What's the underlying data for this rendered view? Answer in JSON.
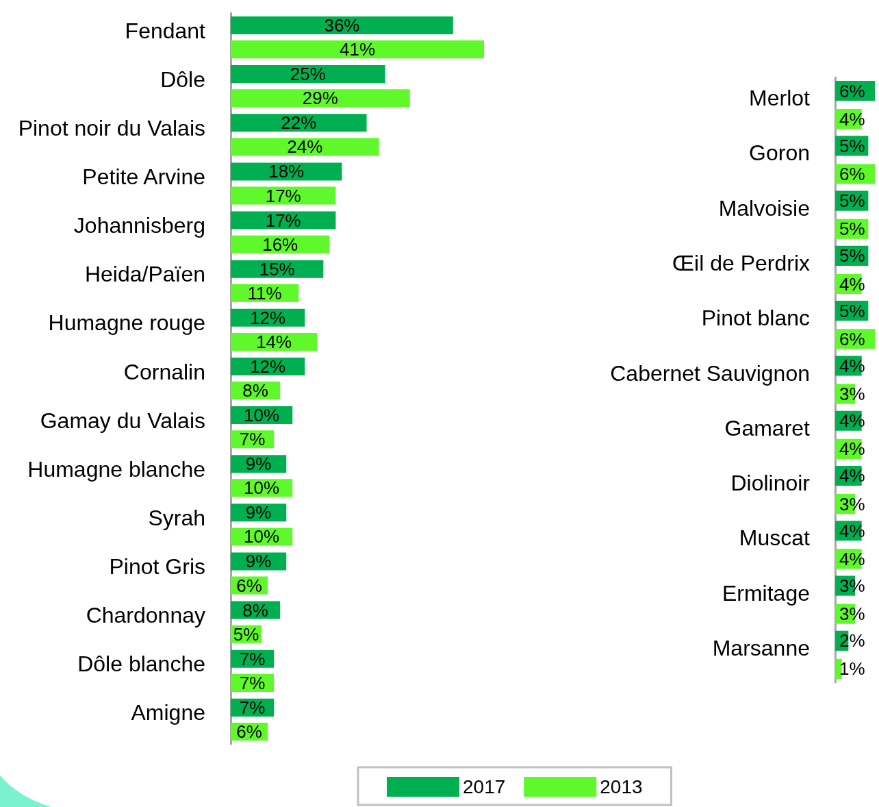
{
  "chart_data": [
    {
      "type": "bar",
      "orientation": "horizontal",
      "tick_labels": "y",
      "legend": "bottom",
      "categories": [
        "Fendant",
        "Dôle",
        "Pinot noir du Valais",
        "Petite Arvine",
        "Johannisberg",
        "Heida/Païen",
        "Humagne rouge",
        "Cornalin",
        "Gamay du Valais",
        "Humagne blanche",
        "Syrah",
        "Pinot Gris",
        "Chardonnay",
        "Dôle blanche",
        "Amigne"
      ],
      "series": [
        {
          "name": "2017",
          "color": "#00b050",
          "values": [
            36,
            25,
            22,
            18,
            17,
            15,
            12,
            12,
            10,
            9,
            9,
            9,
            8,
            7,
            7
          ],
          "value_labels": [
            "36%",
            "25%",
            "22%",
            "18%",
            "17%",
            "15%",
            "12%",
            "12%",
            "10%",
            "9%",
            "9%",
            "9%",
            "8%",
            "7%",
            "7%"
          ]
        },
        {
          "name": "2013",
          "color": "#5ff82a",
          "values": [
            41,
            29,
            24,
            17,
            16,
            11,
            14,
            8,
            7,
            10,
            10,
            6,
            5,
            7,
            6
          ],
          "value_labels": [
            "41%",
            "29%",
            "24%",
            "17%",
            "16%",
            "11%",
            "14%",
            "8%",
            "7%",
            "10%",
            "10%",
            "6%",
            "5%",
            "7%",
            "6%"
          ]
        }
      ]
    },
    {
      "type": "bar",
      "orientation": "horizontal",
      "tick_labels": "y",
      "categories": [
        "Merlot",
        "Goron",
        "Malvoisie",
        "Œil de Perdrix",
        "Pinot blanc",
        "Cabernet Sauvignon",
        "Gamaret",
        "Diolinoir",
        "Muscat",
        "Ermitage",
        "Marsanne"
      ],
      "series": [
        {
          "name": "2017",
          "color": "#00b050",
          "values": [
            6,
            5,
            5,
            5,
            5,
            4,
            4,
            4,
            4,
            3,
            2
          ],
          "value_labels": [
            "6%",
            "5%",
            "5%",
            "5%",
            "5%",
            "4%",
            "4%",
            "4%",
            "4%",
            "3%",
            "2%"
          ]
        },
        {
          "name": "2013",
          "color": "#5ff82a",
          "values": [
            4,
            6,
            5,
            4,
            6,
            3,
            4,
            3,
            4,
            3,
            1
          ],
          "value_labels": [
            "4%",
            "6%",
            "5%",
            "4%",
            "6%",
            "3%",
            "4%",
            "3%",
            "4%",
            "3%",
            "1%"
          ]
        }
      ]
    }
  ]
}
